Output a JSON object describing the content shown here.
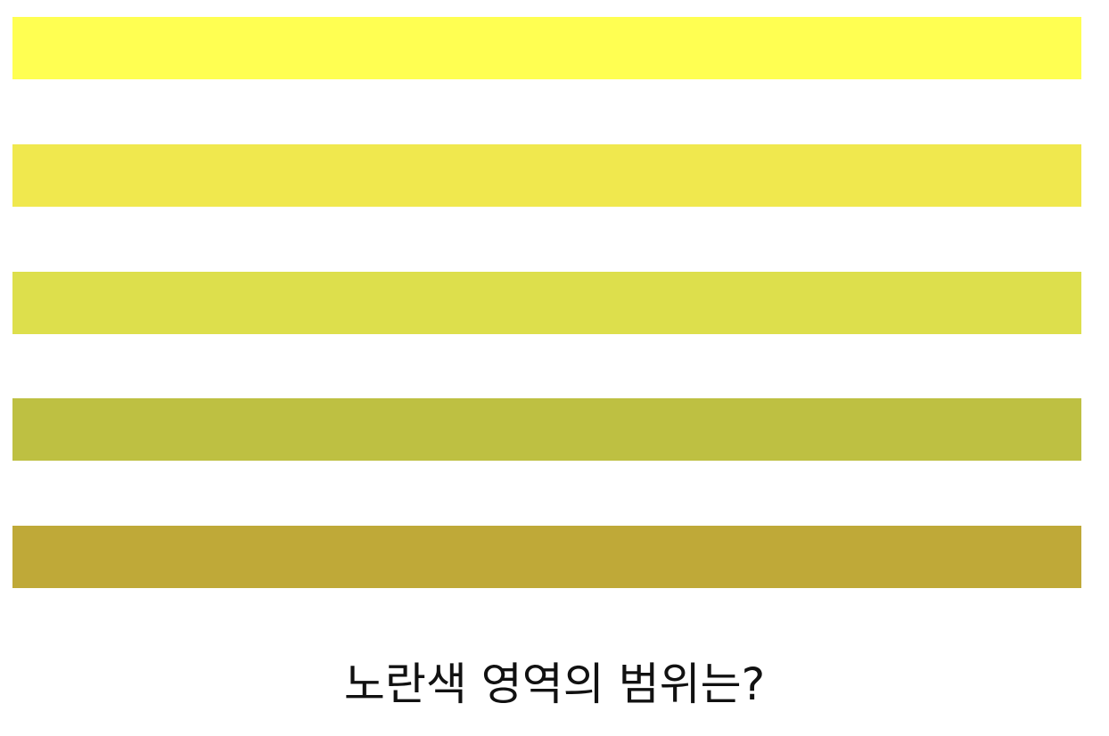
{
  "stripes": [
    {
      "color": "#FFFF52"
    },
    {
      "color": "#F0E84E"
    },
    {
      "color": "#DDDF4C"
    },
    {
      "color": "#BEC042"
    },
    {
      "color": "#BFA938"
    }
  ],
  "question": "노란색 영역의 범위는?"
}
